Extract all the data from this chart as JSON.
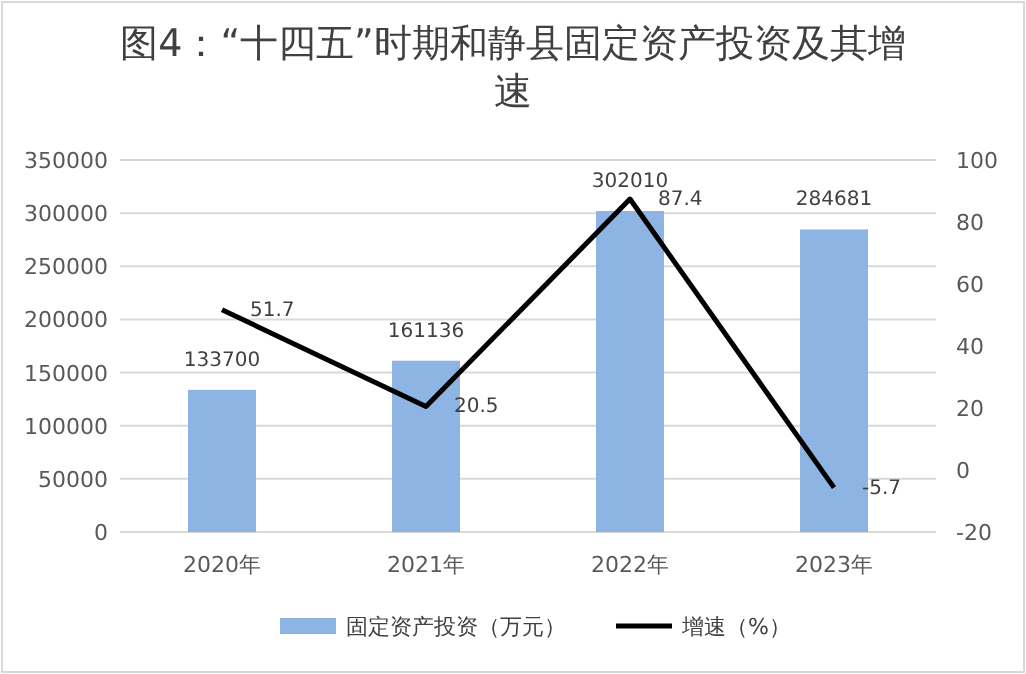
{
  "chart_data": {
    "type": "bar",
    "title": "图4：“十四五”时期和静县固定资产投资及其增速",
    "categories": [
      "2020年",
      "2021年",
      "2022年",
      "2023年"
    ],
    "series": [
      {
        "name": "固定资产投资（万元）",
        "color": "#8eb4e3",
        "values": [
          133700,
          161136,
          302010,
          284681
        ]
      },
      {
        "name": "增速（%）",
        "type": "line",
        "axis": "y2",
        "color": "#000000",
        "values": [
          51.7,
          20.5,
          87.4,
          -5.7
        ]
      }
    ],
    "ylim": [
      0,
      350000
    ],
    "yticks": [
      0,
      50000,
      100000,
      150000,
      200000,
      250000,
      300000,
      350000
    ],
    "y2lim": [
      -20,
      100
    ],
    "y2ticks": [
      -20,
      0,
      20,
      40,
      60,
      80,
      100
    ],
    "grid": "y",
    "legend": "bottom",
    "data_labels": true
  }
}
